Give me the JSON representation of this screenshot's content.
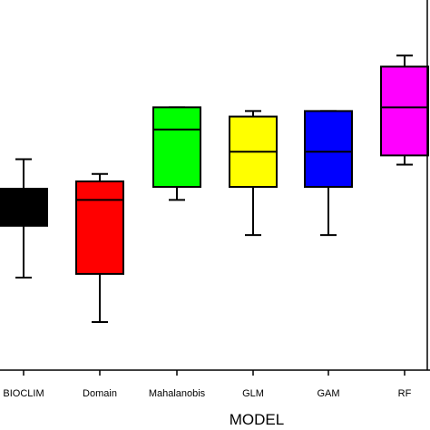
{
  "chart_data": {
    "type": "boxplot",
    "xlabel": "MODEL",
    "ylabel": "",
    "categories": [
      "BIOCLIM",
      "Domain",
      "Mahalanobis",
      "GLM",
      "GAM",
      "RF"
    ],
    "ylim": [
      0,
      10
    ],
    "grid": false,
    "legend": "none",
    "series": [
      {
        "category": "BIOCLIM",
        "color": "#000000",
        "whisker_low": 2.5,
        "q1": 3.9,
        "median": 4.4,
        "q3": 4.9,
        "whisker_high": 5.7
      },
      {
        "category": "Domain",
        "color": "#ff0000",
        "whisker_low": 1.3,
        "q1": 2.6,
        "median": 4.6,
        "q3": 5.1,
        "whisker_high": 5.3
      },
      {
        "category": "Mahalanobis",
        "color": "#00ff00",
        "whisker_low": 4.6,
        "q1": 4.95,
        "median": 6.5,
        "q3": 7.1,
        "whisker_high": 7.1
      },
      {
        "category": "GLM",
        "color": "#ffff00",
        "whisker_low": 3.65,
        "q1": 4.95,
        "median": 5.9,
        "q3": 6.85,
        "whisker_high": 7.0
      },
      {
        "category": "GAM",
        "color": "#0000ff",
        "whisker_low": 3.65,
        "q1": 4.95,
        "median": 5.9,
        "q3": 7.0,
        "whisker_high": 7.0
      },
      {
        "category": "RF",
        "color": "#ff00ff",
        "whisker_low": 5.55,
        "q1": 5.8,
        "median": 7.1,
        "q3": 8.2,
        "whisker_high": 8.5
      }
    ]
  }
}
